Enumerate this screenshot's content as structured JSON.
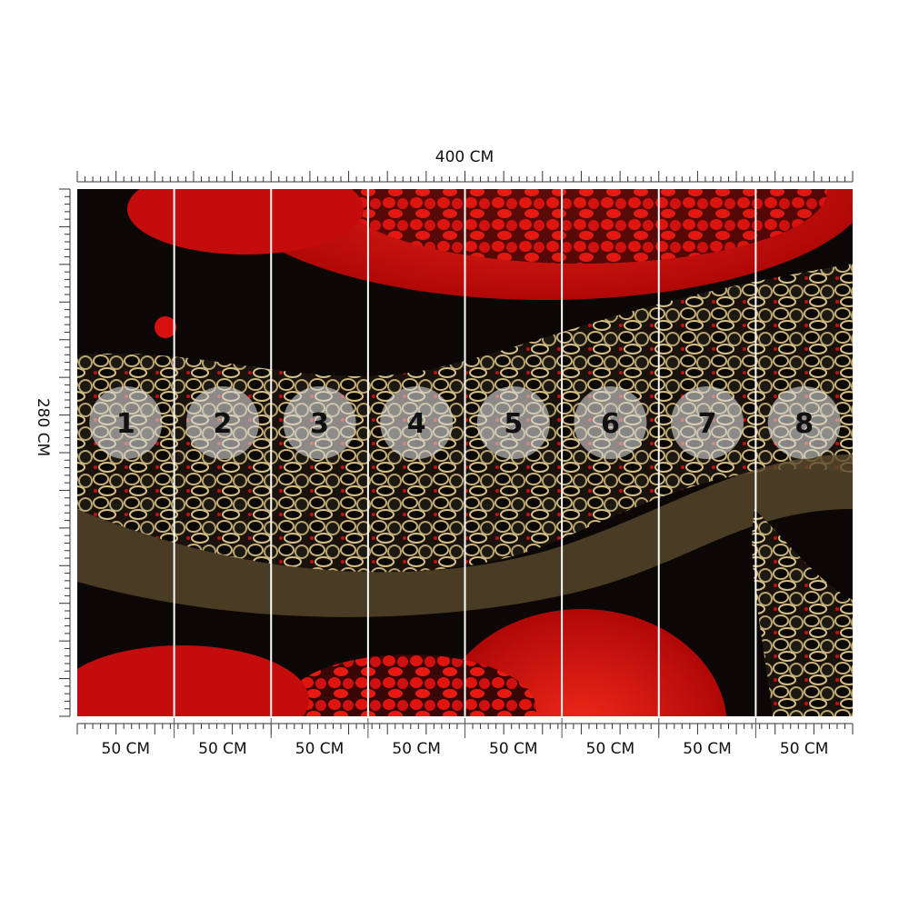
{
  "dimensions": {
    "width": "400 CM",
    "height": "280 CM"
  },
  "panels": [
    {
      "number": "1",
      "width": "50 CM"
    },
    {
      "number": "2",
      "width": "50 CM"
    },
    {
      "number": "3",
      "width": "50 CM"
    },
    {
      "number": "4",
      "width": "50 CM"
    },
    {
      "number": "5",
      "width": "50 CM"
    },
    {
      "number": "6",
      "width": "50 CM"
    },
    {
      "number": "7",
      "width": "50 CM"
    },
    {
      "number": "8",
      "width": "50 CM"
    }
  ]
}
